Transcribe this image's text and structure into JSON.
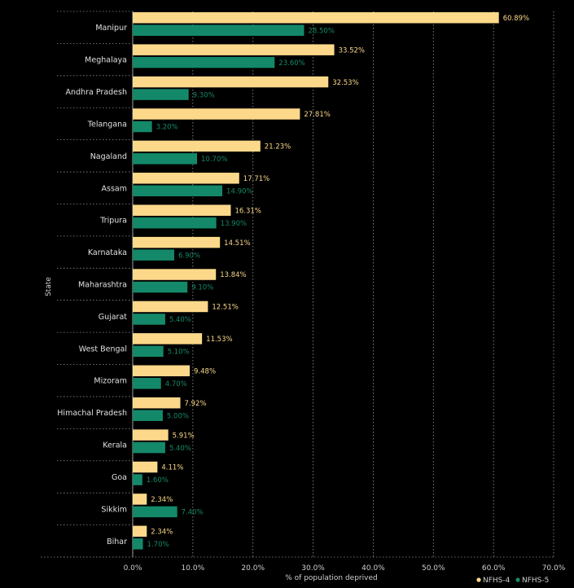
{
  "chart_data": {
    "type": "bar",
    "orientation": "horizontal",
    "title": "",
    "xlabel": "% of population deprived",
    "ylabel": "State",
    "xlim": [
      0,
      70
    ],
    "x_ticks": [
      "0.0%",
      "10.0%",
      "20.0%",
      "30.0%",
      "40.0%",
      "50.0%",
      "60.0%",
      "70.0%"
    ],
    "grid": "vertical dotted",
    "legend_position": "bottom-right",
    "categories": [
      "Manipur",
      "Meghalaya",
      "Andhra Pradesh",
      "Telangana",
      "Nagaland",
      "Assam",
      "Tripura",
      "Karnataka",
      "Maharashtra",
      "Gujarat",
      "West Bengal",
      "Mizoram",
      "Himachal Pradesh",
      "Kerala",
      "Goa",
      "Sikkim",
      "Bihar"
    ],
    "series": [
      {
        "name": "NFHS-4",
        "color": "#fcd98a",
        "values": [
          60.89,
          33.52,
          32.53,
          27.81,
          21.23,
          17.71,
          16.31,
          14.51,
          13.84,
          12.51,
          11.53,
          9.48,
          7.92,
          5.91,
          4.11,
          2.34,
          2.34
        ],
        "labels": [
          "60.89%",
          "33.52%",
          "32.53%",
          "27.81%",
          "21.23%",
          "17.71%",
          "16.31%",
          "14.51%",
          "13.84%",
          "12.51%",
          "11.53%",
          "9.48%",
          "7.92%",
          "5.91%",
          "4.11%",
          "2.34%",
          "2.34%"
        ]
      },
      {
        "name": "NFHS-5",
        "color": "#14896a",
        "values": [
          28.5,
          23.6,
          9.3,
          3.2,
          10.7,
          14.9,
          13.9,
          6.9,
          9.1,
          5.4,
          5.1,
          4.7,
          5.0,
          5.4,
          1.6,
          7.4,
          1.7
        ],
        "labels": [
          "28.50%",
          "23.60%",
          "9.30%",
          "3.20%",
          "10.70%",
          "14.90%",
          "13.90%",
          "6.90%",
          "9.10%",
          "5.40%",
          "5.10%",
          "4.70%",
          "5.00%",
          "5.40%",
          "1.60%",
          "7.40%",
          "1.70%"
        ]
      }
    ]
  }
}
